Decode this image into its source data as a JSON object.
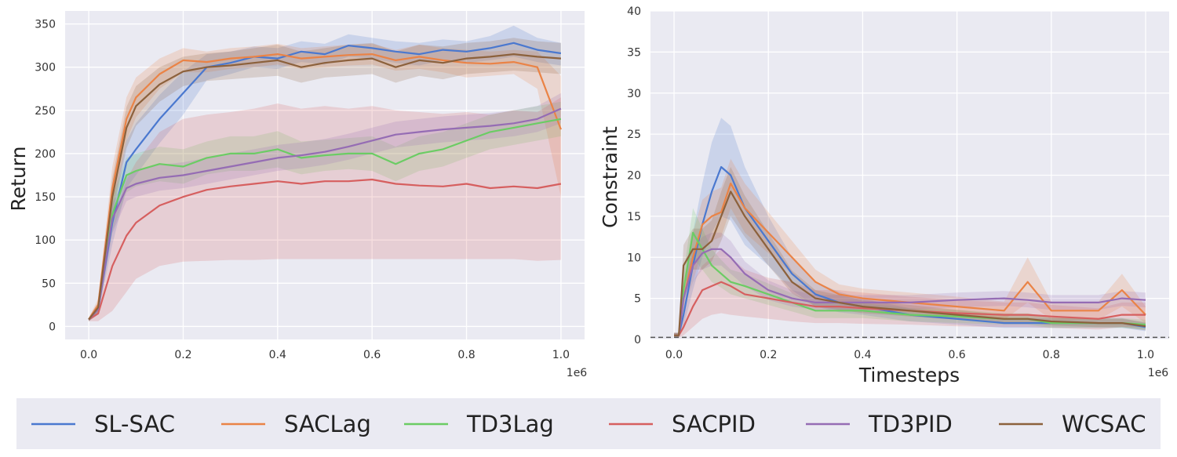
{
  "chart_data": [
    {
      "type": "line",
      "title": "",
      "xlabel": "",
      "ylabel": "Return",
      "x_offset_label": "1e6",
      "xlim": [
        -0.05,
        1.05
      ],
      "ylim": [
        -15,
        365
      ],
      "xticks": [
        0.0,
        0.2,
        0.4,
        0.6,
        0.8,
        1.0
      ],
      "xtick_labels": [
        "0.0",
        "0.2",
        "0.4",
        "0.6",
        "0.8",
        "1.0"
      ],
      "yticks": [
        0,
        50,
        100,
        150,
        200,
        250,
        300,
        350
      ],
      "ytick_labels": [
        "0",
        "50",
        "100",
        "150",
        "200",
        "250",
        "300",
        "350"
      ],
      "grid": true,
      "x": [
        0.0,
        0.02,
        0.05,
        0.08,
        0.1,
        0.15,
        0.2,
        0.25,
        0.3,
        0.35,
        0.4,
        0.45,
        0.5,
        0.55,
        0.6,
        0.65,
        0.7,
        0.75,
        0.8,
        0.85,
        0.9,
        0.95,
        1.0
      ],
      "series": [
        {
          "name": "SL-SAC",
          "values": [
            8,
            20,
            120,
            190,
            205,
            240,
            270,
            300,
            305,
            312,
            310,
            318,
            315,
            325,
            322,
            318,
            315,
            320,
            318,
            322,
            328,
            320,
            316
          ],
          "lower": [
            6,
            14,
            95,
            160,
            175,
            212,
            245,
            285,
            292,
            300,
            298,
            306,
            303,
            312,
            310,
            305,
            302,
            308,
            305,
            308,
            312,
            306,
            302
          ],
          "upper": [
            10,
            26,
            145,
            215,
            235,
            268,
            295,
            315,
            318,
            324,
            322,
            330,
            327,
            338,
            334,
            330,
            328,
            332,
            330,
            336,
            348,
            334,
            328
          ]
        },
        {
          "name": "SACLag",
          "values": [
            8,
            25,
            160,
            240,
            265,
            292,
            308,
            306,
            310,
            312,
            315,
            310,
            312,
            314,
            315,
            308,
            312,
            308,
            305,
            304,
            306,
            300,
            228
          ],
          "lower": [
            6,
            18,
            135,
            215,
            242,
            275,
            294,
            294,
            298,
            300,
            303,
            298,
            300,
            302,
            303,
            296,
            298,
            294,
            288,
            290,
            292,
            275,
            150
          ],
          "upper": [
            10,
            32,
            185,
            265,
            288,
            310,
            322,
            318,
            322,
            324,
            327,
            322,
            324,
            326,
            327,
            320,
            326,
            322,
            320,
            318,
            320,
            318,
            290
          ]
        },
        {
          "name": "TD3Lag",
          "values": [
            8,
            20,
            130,
            175,
            180,
            188,
            185,
            195,
            200,
            200,
            205,
            195,
            198,
            200,
            200,
            188,
            200,
            205,
            215,
            225,
            230,
            235,
            240
          ],
          "lower": [
            6,
            14,
            110,
            155,
            162,
            168,
            165,
            176,
            180,
            180,
            184,
            176,
            180,
            182,
            180,
            168,
            180,
            185,
            195,
            205,
            210,
            215,
            220
          ],
          "upper": [
            10,
            26,
            150,
            195,
            200,
            208,
            205,
            214,
            220,
            220,
            226,
            214,
            216,
            218,
            220,
            208,
            220,
            225,
            235,
            245,
            250,
            255,
            260
          ]
        },
        {
          "name": "SACPID",
          "values": [
            8,
            15,
            70,
            105,
            120,
            140,
            150,
            158,
            162,
            165,
            168,
            165,
            168,
            168,
            170,
            165,
            163,
            162,
            165,
            160,
            162,
            160,
            165
          ],
          "lower": [
            6,
            6,
            18,
            40,
            55,
            70,
            75,
            76,
            77,
            77,
            78,
            78,
            78,
            78,
            78,
            78,
            78,
            78,
            78,
            78,
            78,
            76,
            77
          ],
          "upper": [
            10,
            24,
            120,
            170,
            190,
            225,
            240,
            245,
            248,
            252,
            258,
            252,
            255,
            252,
            255,
            250,
            248,
            246,
            248,
            245,
            250,
            248,
            265
          ]
        },
        {
          "name": "TD3PID",
          "values": [
            8,
            20,
            125,
            160,
            165,
            172,
            175,
            180,
            185,
            190,
            195,
            198,
            202,
            208,
            215,
            222,
            225,
            228,
            230,
            232,
            235,
            240,
            252
          ],
          "lower": [
            6,
            14,
            108,
            145,
            150,
            157,
            160,
            165,
            170,
            175,
            180,
            183,
            187,
            193,
            200,
            207,
            210,
            213,
            215,
            217,
            220,
            225,
            235
          ],
          "upper": [
            10,
            26,
            142,
            175,
            180,
            187,
            190,
            195,
            200,
            205,
            210,
            213,
            217,
            223,
            230,
            237,
            240,
            243,
            245,
            247,
            250,
            255,
            270
          ]
        },
        {
          "name": "WCSAC",
          "values": [
            8,
            22,
            150,
            230,
            255,
            280,
            295,
            300,
            302,
            305,
            308,
            300,
            305,
            308,
            310,
            300,
            308,
            305,
            310,
            312,
            315,
            312,
            310
          ],
          "lower": [
            6,
            16,
            128,
            206,
            232,
            260,
            278,
            284,
            286,
            288,
            290,
            282,
            288,
            290,
            292,
            282,
            290,
            286,
            292,
            294,
            296,
            294,
            292
          ],
          "upper": [
            10,
            28,
            172,
            254,
            278,
            300,
            312,
            316,
            318,
            322,
            326,
            318,
            322,
            326,
            328,
            318,
            326,
            324,
            328,
            330,
            334,
            330,
            328
          ]
        }
      ]
    },
    {
      "type": "line",
      "title": "",
      "xlabel": "Timesteps",
      "ylabel": "Constraint",
      "x_offset_label": "1e6",
      "xlim": [
        -0.05,
        1.05
      ],
      "ylim": [
        0,
        40
      ],
      "xticks": [
        0.0,
        0.2,
        0.4,
        0.6,
        0.8,
        1.0
      ],
      "xtick_labels": [
        "0.0",
        "0.2",
        "0.4",
        "0.6",
        "0.8",
        "1.0"
      ],
      "yticks": [
        0,
        5,
        10,
        15,
        20,
        25,
        30,
        35,
        40
      ],
      "ytick_labels": [
        "0",
        "5",
        "10",
        "15",
        "20",
        "25",
        "30",
        "35",
        "40"
      ],
      "grid": true,
      "threshold": 0.25,
      "x": [
        0.0,
        0.01,
        0.02,
        0.04,
        0.06,
        0.08,
        0.1,
        0.12,
        0.15,
        0.2,
        0.25,
        0.3,
        0.35,
        0.4,
        0.5,
        0.6,
        0.7,
        0.75,
        0.8,
        0.9,
        0.95,
        1.0
      ],
      "series": [
        {
          "name": "SL-SAC",
          "values": [
            0.5,
            0.5,
            3,
            9,
            14,
            18,
            21,
            20,
            16,
            12,
            8,
            5.5,
            4.5,
            4,
            3,
            2.5,
            2,
            2,
            2,
            2,
            2,
            1.5
          ],
          "lower": [
            0.2,
            0.2,
            1.5,
            6,
            10,
            13,
            15,
            14.5,
            11.5,
            9,
            6,
            4,
            3.3,
            3,
            2.2,
            1.8,
            1.4,
            1.4,
            1.4,
            1.4,
            1.4,
            1.0
          ],
          "upper": [
            0.8,
            0.8,
            5,
            13,
            19,
            24,
            27,
            26,
            21,
            15,
            10,
            7,
            5.8,
            5,
            3.8,
            3.2,
            2.6,
            2.6,
            2.6,
            2.6,
            2.6,
            2.0
          ]
        },
        {
          "name": "SACLag",
          "values": [
            0.5,
            0.5,
            5,
            10,
            14,
            15,
            15.5,
            19,
            16,
            13,
            10,
            7,
            5.5,
            5,
            4.5,
            4,
            3.5,
            7,
            3.5,
            3.5,
            6,
            3
          ],
          "lower": [
            0.2,
            0.2,
            3,
            7,
            11,
            12,
            12.5,
            16,
            13,
            10.5,
            8,
            5.5,
            4.3,
            3.8,
            3.3,
            2.8,
            2.4,
            4.5,
            2.4,
            2.4,
            4,
            2
          ],
          "upper": [
            0.8,
            0.8,
            7,
            13,
            17,
            18,
            18.5,
            22,
            19,
            15.5,
            12,
            8.5,
            6.7,
            6.2,
            5.7,
            5.2,
            4.6,
            10,
            4.6,
            4.6,
            8,
            4
          ]
        },
        {
          "name": "TD3Lag",
          "values": [
            0.5,
            0.5,
            6,
            13,
            11,
            9,
            8,
            7,
            6.5,
            5.5,
            4.5,
            3.5,
            3.5,
            3.5,
            3,
            2.8,
            2.5,
            2.5,
            2,
            2,
            2,
            1.8
          ],
          "lower": [
            0.2,
            0.2,
            4,
            10,
            8.5,
            7,
            6.3,
            5.5,
            5,
            4.2,
            3.4,
            2.6,
            2.6,
            2.6,
            2.2,
            2.0,
            1.8,
            1.8,
            1.4,
            1.4,
            1.4,
            1.2
          ],
          "upper": [
            0.8,
            0.8,
            8,
            16,
            13.5,
            11,
            9.7,
            8.5,
            8,
            6.8,
            5.6,
            4.4,
            4.4,
            4.4,
            3.8,
            3.6,
            3.2,
            3.2,
            2.6,
            2.6,
            2.6,
            2.4
          ]
        },
        {
          "name": "SACPID",
          "values": [
            0.5,
            0.5,
            1.5,
            4,
            6,
            6.5,
            7,
            6.5,
            5.5,
            5,
            4.5,
            4,
            4,
            3.8,
            3.5,
            3.2,
            3,
            3,
            2.8,
            2.5,
            3,
            3
          ],
          "lower": [
            0.2,
            0.2,
            0.5,
            1.5,
            2.5,
            3,
            3.2,
            3,
            2.8,
            2.5,
            2.2,
            2,
            2,
            1.9,
            1.8,
            1.6,
            1.5,
            1.5,
            1.4,
            1.2,
            1.5,
            1.5
          ],
          "upper": [
            0.8,
            0.8,
            3,
            7,
            9,
            10,
            11,
            10,
            8.5,
            7.5,
            7,
            6,
            6,
            5.7,
            5.2,
            4.8,
            4.5,
            4.5,
            4.2,
            3.8,
            4.5,
            4.5
          ]
        },
        {
          "name": "TD3PID",
          "values": [
            0.5,
            0.5,
            5,
            9,
            10.5,
            11,
            11,
            10,
            8,
            6,
            5,
            4.5,
            4.5,
            4.5,
            4.5,
            4.8,
            5,
            4.8,
            4.5,
            4.5,
            5,
            4.8
          ],
          "lower": [
            0.2,
            0.2,
            3.5,
            7,
            8.5,
            9,
            9,
            8,
            6.5,
            4.8,
            4,
            3.6,
            3.6,
            3.6,
            3.6,
            3.9,
            4.1,
            3.9,
            3.6,
            3.6,
            4.1,
            3.9
          ],
          "upper": [
            0.8,
            0.8,
            6.5,
            11,
            12.5,
            13,
            13,
            12,
            9.5,
            7.2,
            6,
            5.4,
            5.4,
            5.4,
            5.4,
            5.7,
            5.9,
            5.7,
            5.4,
            5.4,
            5.9,
            5.7
          ]
        },
        {
          "name": "WCSAC",
          "values": [
            0.5,
            0.5,
            9,
            11,
            11,
            12,
            15,
            18,
            15,
            11,
            7,
            5,
            4.5,
            4,
            3.5,
            3,
            2.5,
            2.5,
            2.2,
            2,
            2,
            1.6
          ],
          "lower": [
            0.2,
            0.2,
            6.5,
            8.5,
            8.5,
            9.5,
            12,
            15,
            12.5,
            9,
            5.6,
            4,
            3.6,
            3.2,
            2.8,
            2.4,
            2,
            2,
            1.7,
            1.5,
            1.5,
            1.1
          ],
          "upper": [
            0.8,
            0.8,
            11.5,
            13.5,
            13.5,
            14.5,
            18,
            21,
            17.5,
            13,
            8.4,
            6,
            5.4,
            4.8,
            4.2,
            3.6,
            3,
            3,
            2.7,
            2.5,
            2.5,
            2.1
          ]
        }
      ]
    }
  ],
  "legend": {
    "position": "bottom",
    "entries": [
      "SL-SAC",
      "SACLag",
      "TD3Lag",
      "SACPID",
      "TD3PID",
      "WCSAC"
    ]
  },
  "colors": {
    "SL-SAC": "#4a78cf",
    "SACLag": "#ea8346",
    "TD3Lag": "#6bcc64",
    "SACPID": "#d65f5f",
    "TD3PID": "#956cb4",
    "WCSAC": "#8c613c",
    "axes_bg": "#eaeaf2",
    "grid": "#ffffff"
  }
}
